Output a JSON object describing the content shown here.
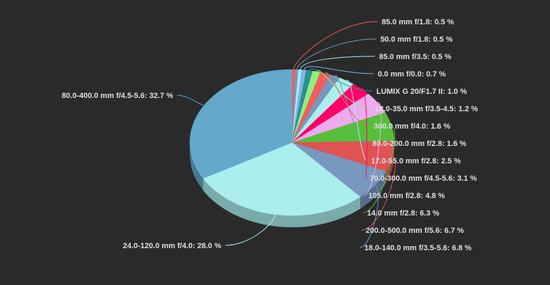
{
  "chart_data": {
    "type": "pie",
    "style": "3d",
    "title": "",
    "label_format": "{name}: {value} %",
    "slices": [
      {
        "name": "85.0 mm f/1.8",
        "value": 0.5,
        "color": "#f45b5b"
      },
      {
        "name": "50.0 mm f/1.8",
        "value": 0.5,
        "color": "#7798bf"
      },
      {
        "name": "85.0 mm f/3.5",
        "value": 0.5,
        "color": "#aaeeee"
      },
      {
        "name": "0.0 mm f/0.0",
        "value": 0.7,
        "color": "#7cb5ec"
      },
      {
        "name": "LUMIX G 20/F1.7 II",
        "value": 1.0,
        "color": "#2b908f"
      },
      {
        "name": "18.0-35.0 mm f/3.5-4.5",
        "value": 1.2,
        "color": "#90ee7e"
      },
      {
        "name": "300.0 mm f/4.0",
        "value": 1.6,
        "color": "#f45b5b"
      },
      {
        "name": "80.0-200.0 mm f/2.8",
        "value": 1.6,
        "color": "#7798bf"
      },
      {
        "name": "17.0-55.0 mm f/2.8",
        "value": 2.5,
        "color": "#aaeeee"
      },
      {
        "name": "70.0-300.0 mm f/4.5-5.6",
        "value": 3.1,
        "color": "#ff0066"
      },
      {
        "name": "105.0 mm f/2.8",
        "value": 4.8,
        "color": "#eeaaee"
      },
      {
        "name": "14.0 mm f/2.8",
        "value": 6.3,
        "color": "#55bf3b"
      },
      {
        "name": "200.0-500.0 mm f/5.6",
        "value": 6.7,
        "color": "#df5353"
      },
      {
        "name": "18.0-140.0 mm f/3.5-5.6",
        "value": 6.8,
        "color": "#7798bf"
      },
      {
        "name": "24.0-120.0 mm f/4.0",
        "value": 28.0,
        "color": "#aaeeee"
      },
      {
        "name": "80.0-400.0 mm f/4.5-5.6",
        "value": 32.7,
        "color": "#64a8cc"
      }
    ]
  }
}
